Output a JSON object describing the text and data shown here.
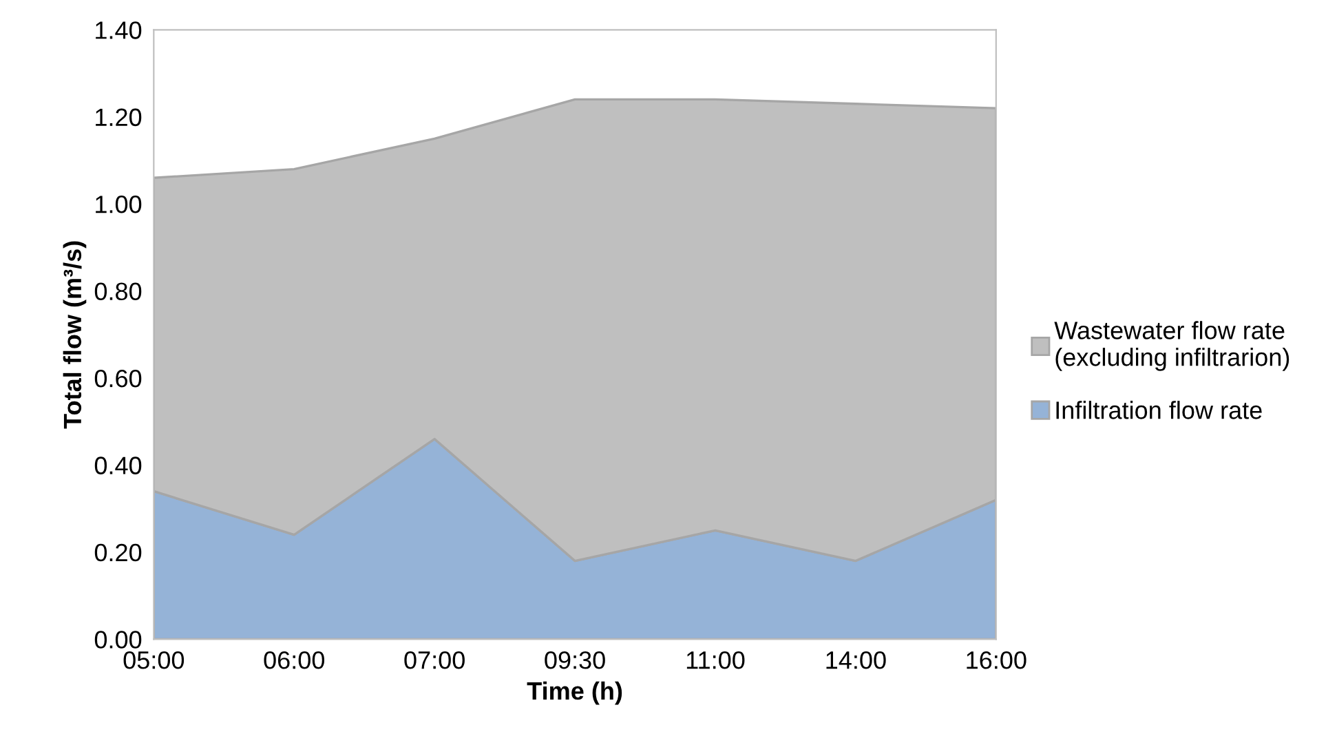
{
  "chart_data": {
    "type": "area",
    "stacked": true,
    "xlabel": "Time (h)",
    "ylabel": "Total flow (m³/s)",
    "categories": [
      "05:00",
      "06:00",
      "07:00",
      "09:30",
      "11:00",
      "14:00",
      "16:00"
    ],
    "series": [
      {
        "name": "Infiltration flow rate",
        "color": "#95b3d7",
        "values": [
          0.34,
          0.24,
          0.46,
          0.18,
          0.25,
          0.18,
          0.32
        ]
      },
      {
        "name": "Wastewater flow rate\n(excluding infiltrarion)",
        "color": "#bfbfbf",
        "values": [
          0.72,
          0.84,
          0.69,
          1.06,
          0.99,
          1.05,
          0.9
        ]
      }
    ],
    "ylim": [
      0,
      1.4
    ],
    "yticks": [
      {
        "value": 0,
        "label": "0.00"
      },
      {
        "value": 0.2,
        "label": "0.20"
      },
      {
        "value": 0.4,
        "label": "0.40"
      },
      {
        "value": 0.6,
        "label": "0.60"
      },
      {
        "value": 0.8,
        "label": "0.80"
      },
      {
        "value": 1.0,
        "label": "1.00"
      },
      {
        "value": 1.2,
        "label": "1.20"
      },
      {
        "value": 1.4,
        "label": "1.40"
      }
    ],
    "grid": false,
    "legend": "right"
  }
}
